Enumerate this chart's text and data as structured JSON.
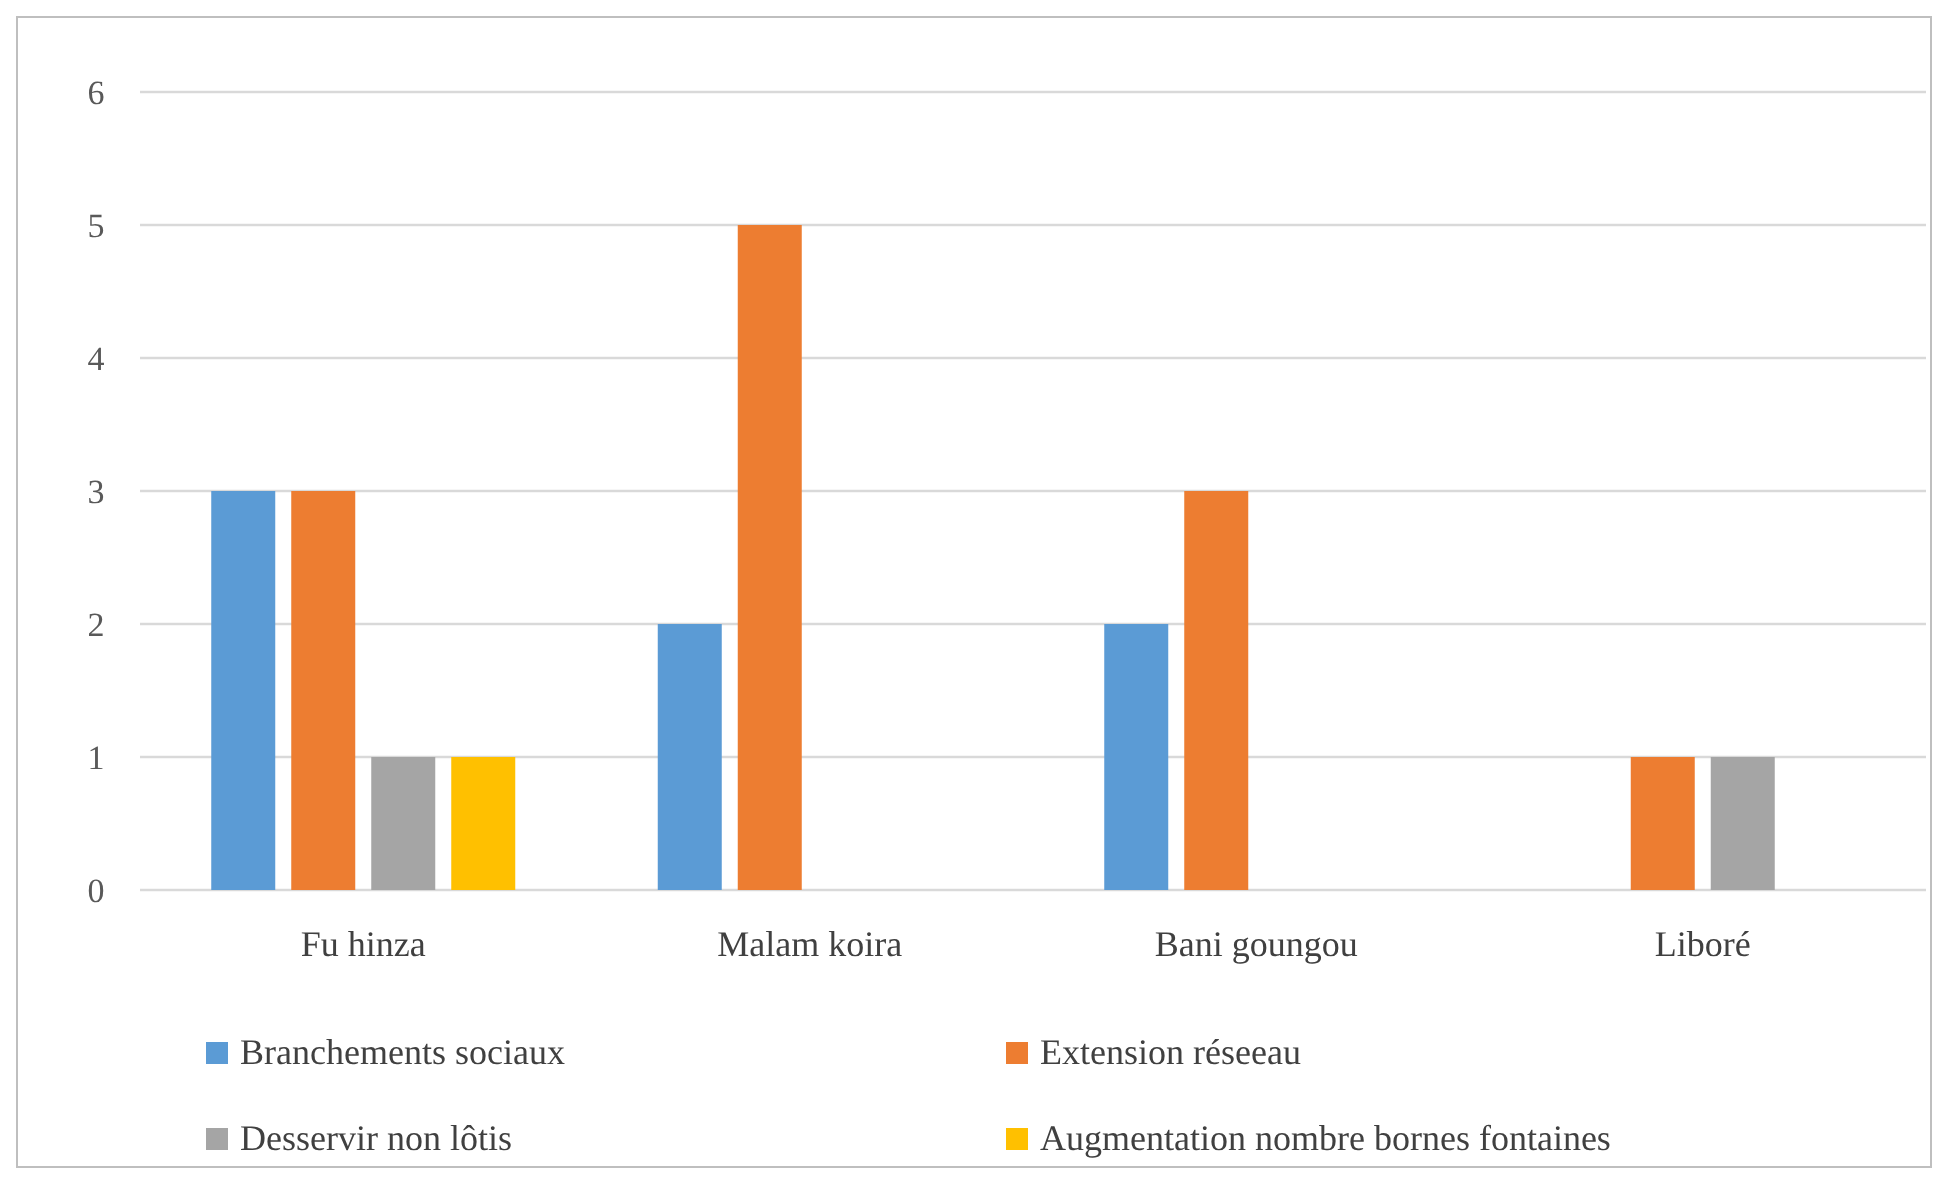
{
  "chart_data": {
    "type": "bar",
    "categories": [
      "Fu hinza",
      "Malam koira",
      "Bani goungou",
      "Liboré"
    ],
    "series": [
      {
        "name": "Branchements sociaux",
        "color": "#5b9bd5",
        "values": [
          3,
          2,
          2,
          0
        ]
      },
      {
        "name": "Extension réseeau",
        "color": "#ed7d31",
        "values": [
          3,
          5,
          3,
          1
        ]
      },
      {
        "name": "Desservir non lôtis",
        "color": "#a5a5a5",
        "values": [
          1,
          0,
          0,
          1
        ]
      },
      {
        "name": "Augmentation nombre bornes fontaines",
        "color": "#ffc000",
        "values": [
          1,
          0,
          0,
          0
        ]
      }
    ],
    "ylim": [
      0,
      6
    ],
    "yticks": [
      0,
      1,
      2,
      3,
      4,
      5,
      6
    ],
    "grid": "y",
    "legend": "bottom"
  }
}
